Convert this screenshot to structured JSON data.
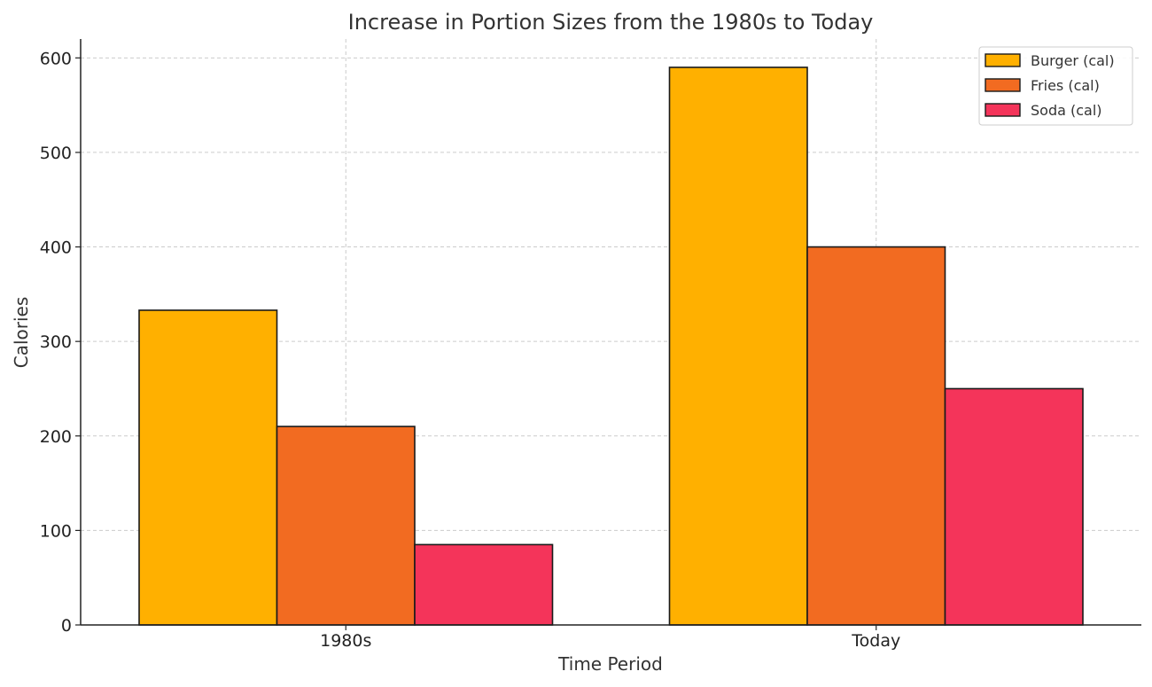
{
  "chart_data": {
    "type": "bar",
    "title": "Increase in Portion Sizes from the 1980s to Today",
    "xlabel": "Time Period",
    "ylabel": "Calories",
    "categories": [
      "1980s",
      "Today"
    ],
    "series": [
      {
        "name": "Burger (cal)",
        "values": [
          333,
          590
        ],
        "color": "#FFB000"
      },
      {
        "name": "Fries (cal)",
        "values": [
          210,
          400
        ],
        "color": "#F26B21"
      },
      {
        "name": "Soda (cal)",
        "values": [
          85,
          250
        ],
        "color": "#F4345A"
      }
    ],
    "ylim": [
      0,
      620
    ],
    "yticks": [
      0,
      100,
      200,
      300,
      400,
      500,
      600
    ],
    "grid": true,
    "legend_position": "top-right"
  }
}
